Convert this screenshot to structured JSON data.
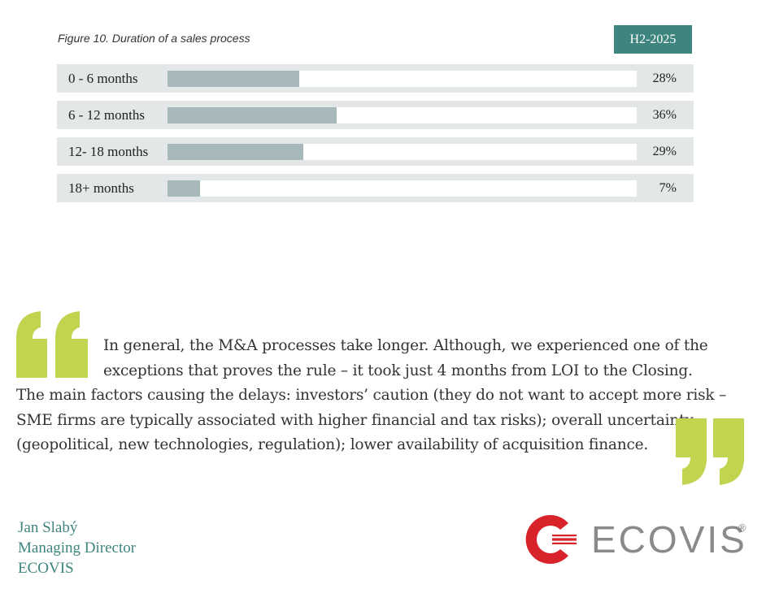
{
  "figure": {
    "title": "Figure 10. Duration of a sales process",
    "period": "H2-2025"
  },
  "chart_data": {
    "type": "bar",
    "orientation": "horizontal",
    "title": "Figure 10. Duration of a sales process",
    "categories": [
      "0 - 6 months",
      "6 - 12 months",
      "12- 18 months",
      "18+ months"
    ],
    "values": [
      28,
      36,
      29,
      7
    ],
    "value_labels": [
      "28%",
      "36%",
      "29%",
      "7%"
    ],
    "xlim": [
      0,
      100
    ],
    "unit": "%",
    "bar_color": "#a7b9ba",
    "grid": false
  },
  "quote": {
    "line1": "In general, the M&A processes take longer. Although, we experienced one of the exceptions that proves the rule – it took just 4 months from LOI to the Closing.",
    "rest": "The main factors causing the delays: investors’ caution (they do not want to accept more risk – SME firms are typically associated with higher financial and tax risks); overall uncertainty (geopolitical, new technologies, regulation); lower availability of acquisition finance."
  },
  "author": {
    "name": "Jan Slabý",
    "role": "Managing Director",
    "company": "ECOVIS"
  },
  "logo": {
    "text": "ECOVIS",
    "registered": "®"
  },
  "colors": {
    "accent": "#3f857f",
    "quote_marks": "#c2d34f",
    "logo_red": "#d8232a",
    "logo_gray": "#8a8a8a"
  }
}
